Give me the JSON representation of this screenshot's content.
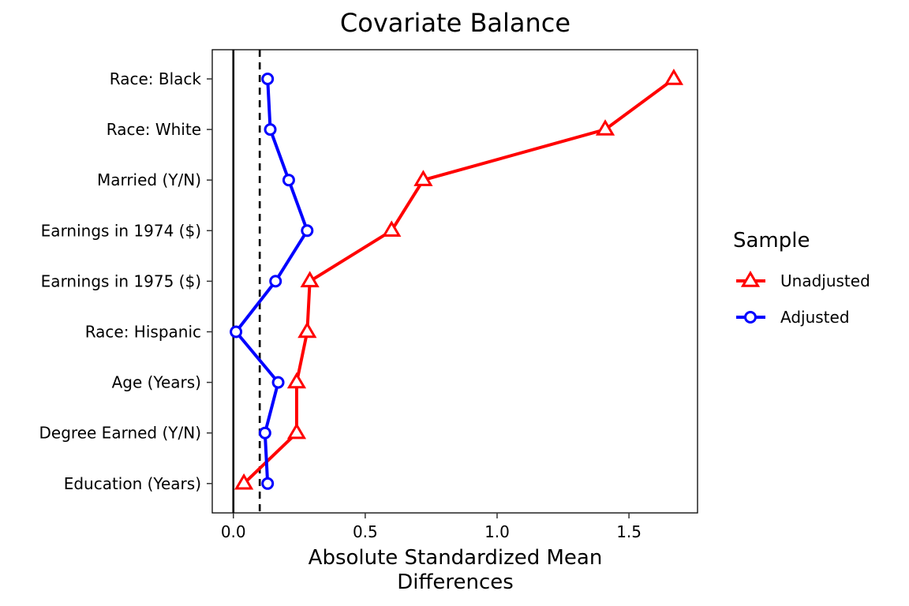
{
  "chart_data": {
    "type": "line",
    "title": "Covariate Balance",
    "xlabel_lines": [
      "Absolute Standardized Mean",
      "Differences"
    ],
    "ylabel": "",
    "xlim": [
      -0.08,
      1.76
    ],
    "xticks": [
      0.0,
      0.5,
      1.0,
      1.5
    ],
    "xtick_labels": [
      "0.0",
      "0.5",
      "1.0",
      "1.5"
    ],
    "reference_lines": [
      {
        "x": 0.0,
        "style": "solid"
      },
      {
        "x": 0.1,
        "style": "dashed"
      }
    ],
    "categories": [
      "Race: Black",
      "Race: White",
      "Married (Y/N)",
      "Earnings in 1974 ($)",
      "Earnings in 1975 ($)",
      "Race: Hispanic",
      "Age (Years)",
      "Degree Earned (Y/N)",
      "Education (Years)"
    ],
    "series": [
      {
        "name": "Unadjusted",
        "color": "#ff0000",
        "marker": "triangle",
        "values": [
          1.67,
          1.41,
          0.72,
          0.6,
          0.29,
          0.28,
          0.24,
          0.24,
          0.04
        ]
      },
      {
        "name": "Adjusted",
        "color": "#0000ff",
        "marker": "circle",
        "values": [
          0.13,
          0.14,
          0.21,
          0.28,
          0.16,
          0.01,
          0.17,
          0.12,
          0.13
        ]
      }
    ],
    "legend": {
      "title": "Sample",
      "position": "right"
    },
    "grid": false
  }
}
